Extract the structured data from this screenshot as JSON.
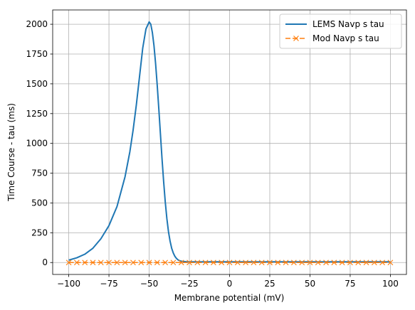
{
  "chart_data": {
    "type": "line",
    "title": "",
    "xlabel": "Membrane potential (mV)",
    "ylabel": "Time Course - tau (ms)",
    "xlim": [
      -110,
      110
    ],
    "ylim": [
      -100,
      2120
    ],
    "xticks": [
      -100,
      -75,
      -50,
      -25,
      0,
      25,
      50,
      75,
      100
    ],
    "xtick_labels": [
      "−100",
      "−75",
      "−50",
      "−25",
      "0",
      "25",
      "50",
      "75",
      "100"
    ],
    "yticks": [
      0,
      250,
      500,
      750,
      1000,
      1250,
      1500,
      1750,
      2000
    ],
    "ytick_labels": [
      "0",
      "250",
      "500",
      "750",
      "1000",
      "1250",
      "1500",
      "1750",
      "2000"
    ],
    "grid": true,
    "legend_position": "top-right",
    "series": [
      {
        "name": "LEMS Navp s tau",
        "color": "#1f77b4",
        "style": "solid",
        "marker": "none",
        "x": [
          -100,
          -95,
          -90,
          -85,
          -80,
          -75,
          -70,
          -65,
          -62,
          -60,
          -58,
          -56,
          -54,
          -52,
          -50,
          -49,
          -48,
          -47,
          -46,
          -45,
          -44,
          -43,
          -42,
          -41,
          -40,
          -39,
          -38,
          -37,
          -36,
          -35,
          -34,
          -33,
          -32,
          -31,
          -30,
          -29,
          -28,
          -27,
          -25,
          0,
          25,
          50,
          75,
          100
        ],
        "y": [
          20,
          40,
          70,
          120,
          200,
          310,
          470,
          720,
          930,
          1110,
          1320,
          1560,
          1800,
          1960,
          2020,
          2000,
          1930,
          1820,
          1670,
          1490,
          1290,
          1080,
          870,
          680,
          510,
          370,
          260,
          180,
          120,
          80,
          52,
          34,
          22,
          15,
          11,
          9,
          8,
          7,
          6,
          6,
          6,
          6,
          6,
          6
        ]
      },
      {
        "name": "Mod Navp s tau",
        "color": "#ff7f0e",
        "style": "dashed",
        "marker": "x",
        "x": [
          -100,
          -95,
          -90,
          -85,
          -80,
          -75,
          -70,
          -65,
          -60,
          -55,
          -50,
          -45,
          -40,
          -35,
          -30,
          -25,
          -20,
          -15,
          -10,
          -5,
          0,
          5,
          10,
          15,
          20,
          25,
          30,
          35,
          40,
          45,
          50,
          55,
          60,
          65,
          70,
          75,
          80,
          85,
          90,
          95,
          100
        ],
        "y": [
          0,
          0,
          0,
          0,
          0,
          0,
          0,
          0,
          0,
          0,
          0,
          0,
          0,
          0,
          0,
          0,
          0,
          0,
          0,
          0,
          0,
          0,
          0,
          0,
          0,
          0,
          0,
          0,
          0,
          0,
          0,
          0,
          0,
          0,
          0,
          0,
          0,
          0,
          0,
          0,
          0
        ]
      }
    ]
  }
}
